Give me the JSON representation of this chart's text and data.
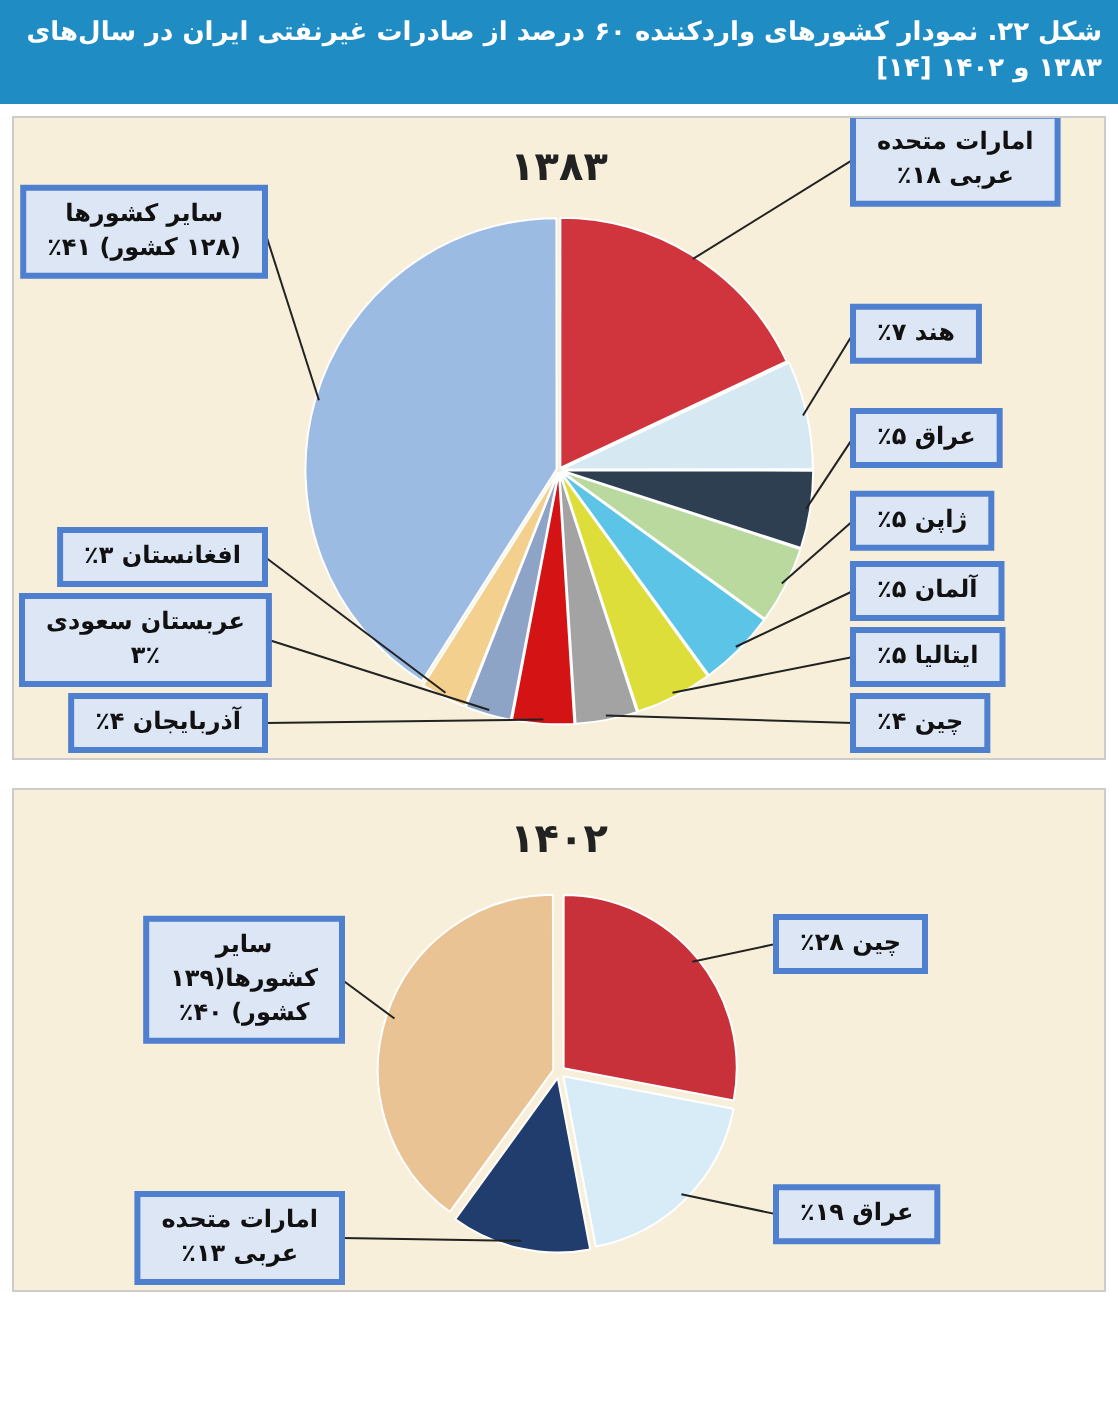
{
  "chart_data": [
    {
      "type": "other",
      "title": "شکل ۲۲. نمودار کشورهای واردکننده ۶۰ درصد از صادرات غیرنفتی ایران در سال‌های ۱۳۸۳ و ۱۴۰۲ [۱۴]"
    },
    {
      "type": "pie",
      "title": "۱۳۸۳",
      "categories": [
        "امارات متحده عربی",
        "هند",
        "عراق",
        "ژاپن",
        "آلمان",
        "ایتالیا",
        "چین",
        "آذربایجان",
        "عربستان سعودی",
        "افغانستان",
        "سایر کشورها (۱۲۸ کشور)"
      ],
      "values": [
        18,
        7,
        5,
        5,
        5,
        5,
        4,
        4,
        3,
        3,
        41
      ],
      "value_labels": [
        "۱۸٪",
        "۷٪",
        "۵٪",
        "۵٪",
        "۵٪",
        "۵٪",
        "۴٪",
        "۴٪",
        "۳٪",
        "۳٪",
        "۴۱٪"
      ],
      "colors": [
        "#d0343c",
        "#d6e8f2",
        "#2f3f52",
        "#b9d99f",
        "#5cc4e6",
        "#dede3a",
        "#a3a3a3",
        "#d41414",
        "#8ea4c6",
        "#f4d08e",
        "#9bbbe3"
      ]
    },
    {
      "type": "pie",
      "title": "۱۴۰۲",
      "categories": [
        "چین",
        "عراق",
        "امارات متحده عربی",
        "سایر کشورها(۱۳۹ کشور)"
      ],
      "values": [
        28,
        19,
        13,
        40
      ],
      "value_labels": [
        "۲۸٪",
        "۱۹٪",
        "۱۳٪",
        "۴۰٪"
      ],
      "colors": [
        "#c8303a",
        "#d8ecf8",
        "#213d6d",
        "#e9c393"
      ]
    }
  ]
}
